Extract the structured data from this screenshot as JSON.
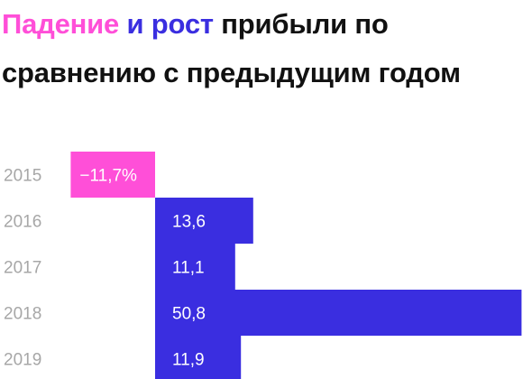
{
  "title": {
    "part_decline": "Падение",
    "part_and": " и",
    "part_growth": " рост",
    "part_rest": " прибыли по сравнению с предыдущим годом"
  },
  "colors": {
    "negative": "#ff4fd8",
    "positive": "#3a2ee0",
    "year_label": "#a7a7a7",
    "bar_label": "#ffffff",
    "title_dark": "#111111"
  },
  "chart_data": {
    "type": "bar",
    "orientation": "horizontal",
    "categories": [
      "2015",
      "2016",
      "2017",
      "2018",
      "2019"
    ],
    "values": [
      -11.7,
      13.6,
      11.1,
      50.8,
      11.9
    ],
    "value_labels": [
      "−11,7%",
      "13,6",
      "11,1",
      "50,8",
      "11,9"
    ],
    "unit": "%",
    "title": "Падение и рост прибыли по сравнению с предыдущим годом",
    "xlabel": "",
    "ylabel": "",
    "grid": false,
    "legend": "none"
  }
}
